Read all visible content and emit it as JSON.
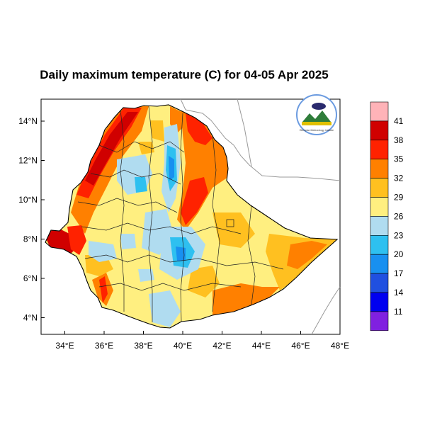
{
  "title": "Daily maximum temperature (C) for 04-05 Apr 2025",
  "map": {
    "x_ticks": [
      "34°E",
      "36°E",
      "38°E",
      "40°E",
      "42°E",
      "44°E",
      "46°E",
      "48°E"
    ],
    "y_ticks": [
      "14°N",
      "12°N",
      "10°N",
      "8°N",
      "6°N",
      "4°N"
    ],
    "lon_range": [
      32.9,
      48.3
    ],
    "lat_range": [
      3.2,
      15.0
    ]
  },
  "colorbar": {
    "labels": [
      "41",
      "38",
      "35",
      "32",
      "29",
      "26",
      "23",
      "20",
      "17",
      "14",
      "11"
    ],
    "colors": [
      "#ffb3b8",
      "#d00000",
      "#ff2200",
      "#ff8000",
      "#ffc020",
      "#ffef80",
      "#b0dcf0",
      "#2ec0f0",
      "#1890f0",
      "#2050e0",
      "#0000f0",
      "#8020e0"
    ]
  },
  "logo": {
    "caption": "Ethiopian Meteorology Institute"
  },
  "colors": {
    "hot": "#d00000",
    "warm": "#ff8000",
    "mild": "#ffef80",
    "cool": "#b0dcf0",
    "cold": "#1890f0"
  }
}
